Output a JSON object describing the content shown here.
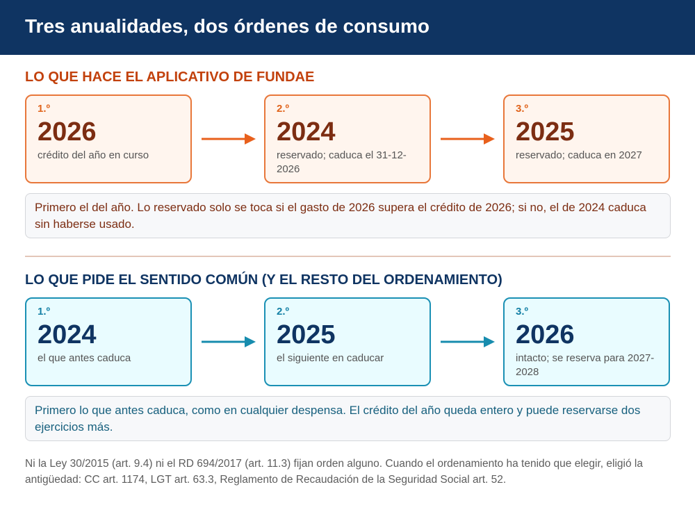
{
  "header": {
    "title": "Tres anualidades, dos órdenes de consumo"
  },
  "section1": {
    "title": "LO QUE HACE EL APLICATIVO DE FUNDAE",
    "accent": "#e8773a",
    "cards": [
      {
        "order": "1.º",
        "year": "2026",
        "desc": "crédito del año en curso"
      },
      {
        "order": "2.º",
        "year": "2024",
        "desc": "reservado; caduca el 31-12-2026"
      },
      {
        "order": "3.º",
        "year": "2025",
        "desc": "reservado; caduca en 2027"
      }
    ],
    "note": "Primero el del año. Lo reservado solo se toca si el gasto de 2026 supera el crédito de 2026; si no, el de 2024 caduca sin haberse usado."
  },
  "section2": {
    "title": "LO QUE PIDE EL SENTIDO COMÚN (Y EL RESTO DEL ORDENAMIENTO)",
    "accent": "#1a90b4",
    "cards": [
      {
        "order": "1.º",
        "year": "2024",
        "desc": "el que antes caduca"
      },
      {
        "order": "2.º",
        "year": "2025",
        "desc": "el siguiente en caducar"
      },
      {
        "order": "3.º",
        "year": "2026",
        "desc": "intacto; se reserva para 2027-2028"
      }
    ],
    "note": "Primero lo que antes caduca, como en cualquier despensa. El crédito del año queda entero y puede reservarse dos ejercicios más."
  },
  "footer": {
    "text": "Ni la Ley 30/2015 (art. 9.4) ni el RD 694/2017 (art. 11.3) fijan orden alguno. Cuando el ordenamiento ha tenido que elegir, eligió la antigüedad: CC art. 1174, LGT art. 63.3, Reglamento de Recaudación de la Seguridad Social art. 52."
  }
}
